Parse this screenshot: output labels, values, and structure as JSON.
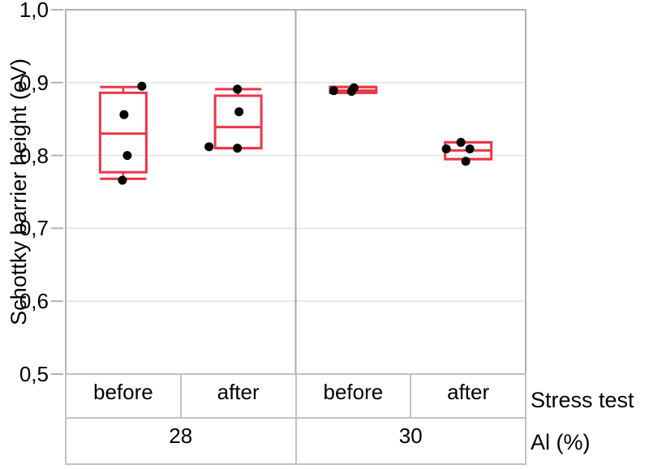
{
  "chart_data": {
    "type": "boxplot",
    "title": "",
    "ylabel": "Schottky barrier height (eV)",
    "ylim": [
      0.5,
      1.0
    ],
    "yticks": [
      {
        "value": 1.0,
        "label": "1,0"
      },
      {
        "value": 0.9,
        "label": "0,9"
      },
      {
        "value": 0.8,
        "label": "0,8"
      },
      {
        "value": 0.7,
        "label": "0,7"
      },
      {
        "value": 0.6,
        "label": "0,6"
      },
      {
        "value": 0.5,
        "label": "0,5"
      }
    ],
    "x_axis": {
      "rows": [
        {
          "title": "Stress test",
          "cells": [
            "before",
            "after",
            "before",
            "after"
          ]
        },
        {
          "title": "Al (%)",
          "cells": [
            "28",
            "30"
          ]
        }
      ]
    },
    "groups": [
      {
        "al": "28",
        "stress": "before",
        "box": {
          "whisker_low": 0.768,
          "q1": 0.777,
          "median": 0.83,
          "q3": 0.886,
          "whisker_high": 0.894
        },
        "points": [
          {
            "dx": 23,
            "value": 0.895
          },
          {
            "dx": 1,
            "value": 0.856
          },
          {
            "dx": 5,
            "value": 0.8
          },
          {
            "dx": -1,
            "value": 0.766
          }
        ]
      },
      {
        "al": "28",
        "stress": "after",
        "box": {
          "whisker_low": 0.81,
          "q1": 0.81,
          "median": 0.839,
          "q3": 0.882,
          "whisker_high": 0.891
        },
        "points": [
          {
            "dx": -1,
            "value": 0.891
          },
          {
            "dx": 1,
            "value": 0.86
          },
          {
            "dx": -36,
            "value": 0.812
          },
          {
            "dx": -1,
            "value": 0.81
          }
        ]
      },
      {
        "al": "30",
        "stress": "before",
        "box": {
          "whisker_low": 0.886,
          "q1": 0.886,
          "median": 0.889,
          "q3": 0.894,
          "whisker_high": 0.894
        },
        "points": [
          {
            "dx": 1,
            "value": 0.893
          },
          {
            "dx": -2,
            "value": 0.888
          },
          {
            "dx": -24,
            "value": 0.889
          }
        ]
      },
      {
        "al": "30",
        "stress": "after",
        "box": {
          "whisker_low": 0.795,
          "q1": 0.795,
          "median": 0.807,
          "q3": 0.818,
          "whisker_high": 0.818
        },
        "points": [
          {
            "dx": -9,
            "value": 0.818
          },
          {
            "dx": -27,
            "value": 0.809
          },
          {
            "dx": 2,
            "value": 0.809
          },
          {
            "dx": -3,
            "value": 0.792
          }
        ]
      }
    ],
    "colors": {
      "box": "#ed3648",
      "point": "#000000",
      "grid": "#e2e2e2",
      "frame": "#b2b2b2",
      "separator": "#a8a8a8",
      "table_border": "#c2c2c2",
      "text": "#000000",
      "background": "#ffffff"
    },
    "layout_hints": {
      "grid": true,
      "legend": "none",
      "group_separator_between": [
        "28",
        "30"
      ],
      "boxes_unfilled": true
    }
  }
}
